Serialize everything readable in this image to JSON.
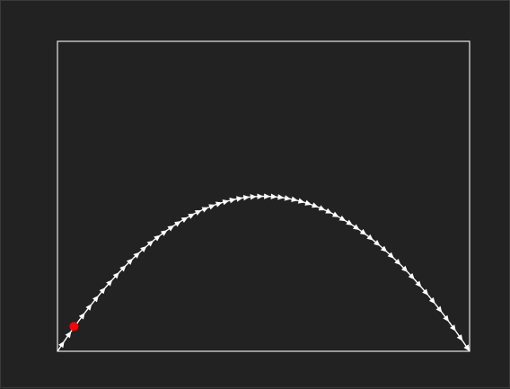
{
  "colors": {
    "background": "#222222",
    "frame": "#e6e6e6",
    "arrows": "#ffffff",
    "marker": "#ff0000"
  },
  "chart_data": {
    "type": "line",
    "title": "",
    "xlabel": "",
    "ylabel": "",
    "grid": false,
    "xlim": [
      0,
      1
    ],
    "ylim": [
      0,
      1
    ],
    "trajectory": {
      "shape": "parabola",
      "start": [
        0,
        0
      ],
      "apex": [
        0.5,
        0.5
      ],
      "end": [
        1,
        0
      ],
      "arrow_count": 60
    },
    "marker_point": {
      "x": 0.04,
      "y": 0.08
    }
  }
}
